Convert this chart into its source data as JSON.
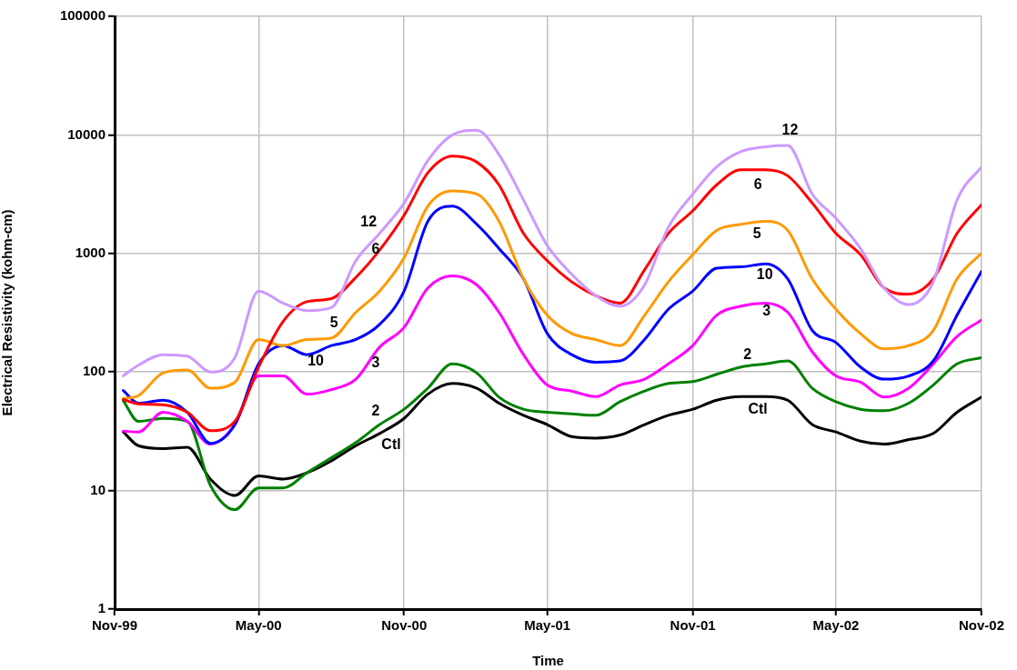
{
  "chart_data": {
    "type": "line",
    "xlabel": "Time",
    "ylabel": "Electrical Resistivity (kohm-cm)",
    "x": [
      "1999-11-12",
      "1999-12-01",
      "2000-01-01",
      "2000-02-01",
      "2000-03-01",
      "2000-04-01",
      "2000-05-01",
      "2000-06-01",
      "2000-07-01",
      "2000-08-01",
      "2000-09-01",
      "2000-10-01",
      "2000-11-01",
      "2000-12-01",
      "2001-01-01",
      "2001-02-01",
      "2001-03-01",
      "2001-04-01",
      "2001-05-01",
      "2001-06-01",
      "2001-07-01",
      "2001-08-01",
      "2001-09-01",
      "2001-10-01",
      "2001-11-01",
      "2001-12-01",
      "2002-01-01",
      "2002-02-01",
      "2002-03-01",
      "2002-04-01",
      "2002-05-01",
      "2002-06-01",
      "2002-07-01",
      "2002-08-01",
      "2002-09-01",
      "2002-10-01",
      "2002-11-01"
    ],
    "series": [
      {
        "name": "12",
        "color": "#cc99ff",
        "values": [
          93,
          114,
          140,
          136,
          100,
          132,
          482,
          381,
          329,
          349,
          869,
          1477,
          2660,
          6070,
          10000,
          10960,
          6820,
          2820,
          1165,
          667,
          442,
          359,
          542,
          1660,
          3170,
          5370,
          7240,
          7940,
          8130,
          3170,
          1980,
          1100,
          510,
          370,
          576,
          2820,
          5370
        ]
      },
      {
        "name": "6",
        "color": "#ff0000",
        "values": [
          58.5,
          53.9,
          53,
          45.7,
          32,
          38.3,
          110,
          267,
          392,
          416,
          628,
          1067,
          2100,
          4790,
          6620,
          5890,
          3780,
          1475,
          868,
          575,
          441,
          381,
          728,
          1475,
          2295,
          3780,
          5080,
          5080,
          4520,
          2660,
          1475,
          977,
          511,
          454,
          610,
          1475,
          2580
        ]
      },
      {
        "name": "5",
        "color": "#ff9900",
        "values": [
          59.6,
          63.2,
          98,
          104,
          73,
          82,
          188,
          167,
          188,
          193,
          319,
          482,
          921,
          2505,
          3365,
          3170,
          1866,
          610,
          301,
          211,
          188,
          167,
          301,
          575,
          977,
          1565,
          1760,
          1866,
          1565,
          610,
          338,
          211,
          157,
          167,
          224,
          610,
          1006
        ]
      },
      {
        "name": "10",
        "color": "#0000ff",
        "values": [
          69.8,
          54.6,
          57.8,
          45.7,
          25,
          36,
          117,
          167,
          140,
          167,
          188,
          252,
          482,
          1866,
          2505,
          1760,
          1099,
          610,
          211,
          140,
          121,
          124,
          188,
          338,
          482,
          750,
          771,
          818,
          610,
          224,
          177,
          110,
          87,
          92.6,
          124,
          301,
          706
        ]
      },
      {
        "name": "3",
        "color": "#ff00ff",
        "values": [
          31.7,
          31.2,
          45.7,
          38.3,
          24.6,
          36,
          92.6,
          92.6,
          65,
          71,
          87,
          162,
          238,
          511,
          647,
          542,
          319,
          140,
          77.6,
          69,
          62,
          77.6,
          87,
          117,
          167,
          301,
          359,
          381,
          319,
          148,
          92.6,
          82,
          61.4,
          73,
          117,
          199,
          275
        ]
      },
      {
        "name": "2",
        "color": "#008000",
        "values": [
          57.2,
          38.3,
          40.6,
          38.3,
          11.1,
          6.9,
          10.5,
          10.5,
          14.1,
          18.9,
          25.4,
          36,
          48.5,
          73,
          117,
          98,
          61.4,
          48.5,
          45.7,
          44.4,
          43.1,
          56.1,
          69,
          80,
          83,
          95.5,
          110,
          117,
          124,
          73,
          56.1,
          48.5,
          47.1,
          54.6,
          77.6,
          117,
          132
        ]
      },
      {
        "name": "Ctl",
        "color": "#000000",
        "values": [
          31.2,
          23.9,
          22.6,
          23.2,
          12.5,
          9.1,
          13.3,
          12.5,
          14.1,
          17.8,
          23.9,
          30.3,
          40.6,
          65,
          80,
          73,
          54.6,
          43.1,
          36,
          28.5,
          27.7,
          29.4,
          36,
          43.1,
          48.5,
          57.8,
          62,
          62,
          57.8,
          36,
          31.2,
          26.1,
          24.6,
          26.9,
          30.3,
          45.7,
          61.4
        ]
      }
    ],
    "xlim": [
      "1999-11-01",
      "2002-11-01"
    ],
    "xticks": [
      {
        "value": "1999-11-01",
        "label": "Nov-99"
      },
      {
        "value": "2000-05-01",
        "label": "May-00"
      },
      {
        "value": "2000-11-01",
        "label": "Nov-00"
      },
      {
        "value": "2001-05-01",
        "label": "May-01"
      },
      {
        "value": "2001-11-01",
        "label": "Nov-01"
      },
      {
        "value": "2002-05-01",
        "label": "May-02"
      },
      {
        "value": "2002-11-01",
        "label": "Nov-02"
      }
    ],
    "ylim": [
      1,
      100000
    ],
    "yticks": [
      1,
      10,
      100,
      1000,
      10000,
      100000
    ],
    "log": "y",
    "grid": true,
    "legend": false,
    "marker": "none",
    "line_style": "solid"
  }
}
